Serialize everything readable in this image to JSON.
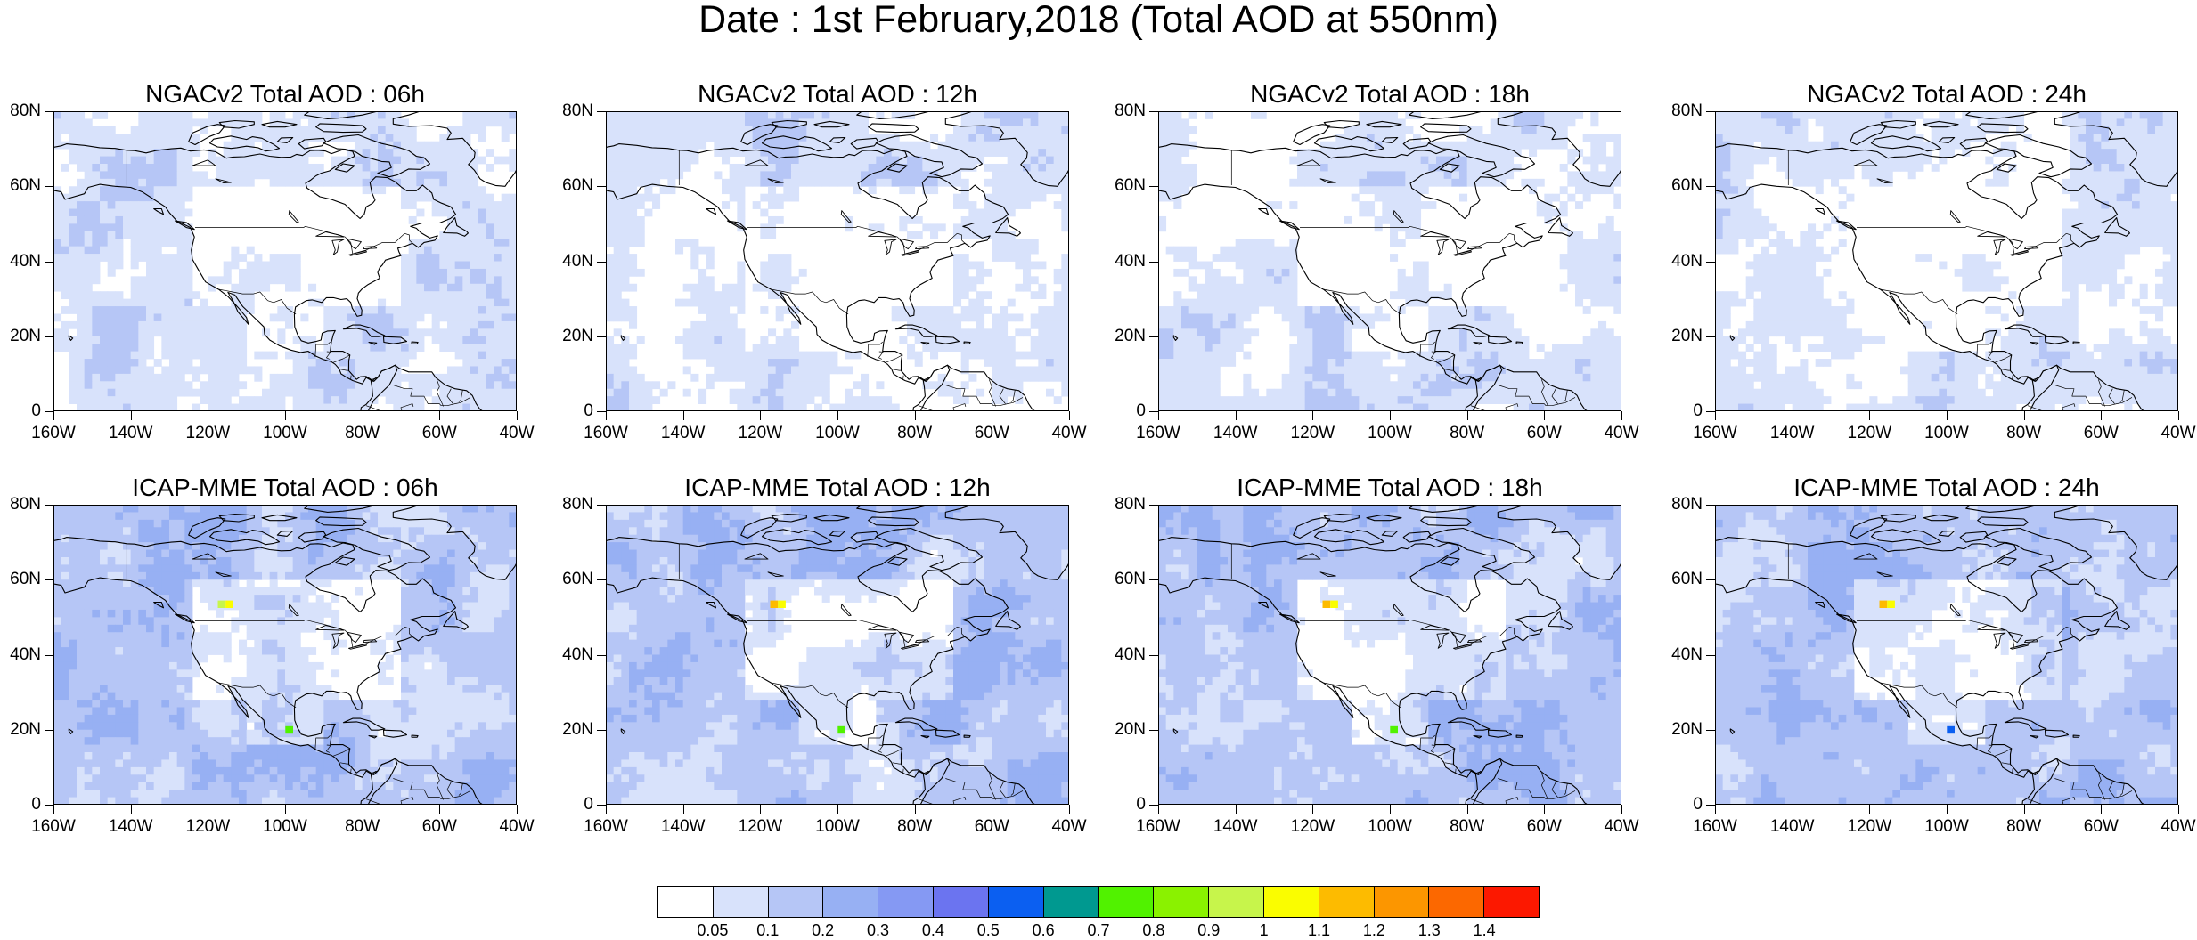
{
  "title": "Date : 1st February,2018 (Total AOD at 550nm)",
  "axes": {
    "lat_labels": [
      "0",
      "20N",
      "40N",
      "60N",
      "80N"
    ],
    "lon_labels": [
      "160W",
      "140W",
      "120W",
      "100W",
      "80W",
      "60W",
      "40W"
    ],
    "lat_range": [
      0,
      80
    ],
    "lon_range": [
      -160,
      -40
    ]
  },
  "panels": [
    {
      "id": "ngac-06h",
      "title": "NGACv2 Total AOD : 06h",
      "model": "NGACv2",
      "lead": "06h"
    },
    {
      "id": "ngac-12h",
      "title": "NGACv2 Total AOD : 12h",
      "model": "NGACv2",
      "lead": "12h"
    },
    {
      "id": "ngac-18h",
      "title": "NGACv2 Total AOD : 18h",
      "model": "NGACv2",
      "lead": "18h"
    },
    {
      "id": "ngac-24h",
      "title": "NGACv2 Total AOD : 24h",
      "model": "NGACv2",
      "lead": "24h"
    },
    {
      "id": "icap-06h",
      "title": "ICAP-MME Total AOD : 06h",
      "model": "ICAP-MME",
      "lead": "06h"
    },
    {
      "id": "icap-12h",
      "title": "ICAP-MME Total AOD : 12h",
      "model": "ICAP-MME",
      "lead": "12h"
    },
    {
      "id": "icap-18h",
      "title": "ICAP-MME Total AOD : 18h",
      "model": "ICAP-MME",
      "lead": "18h"
    },
    {
      "id": "icap-24h",
      "title": "ICAP-MME Total AOD : 24h",
      "model": "ICAP-MME",
      "lead": "24h"
    }
  ],
  "colorbar": {
    "labels": [
      "0.05",
      "0.1",
      "0.2",
      "0.3",
      "0.4",
      "0.5",
      "0.6",
      "0.7",
      "0.8",
      "0.9",
      "1",
      "1.1",
      "1.2",
      "1.3",
      "1.4"
    ],
    "colors": [
      "#ffffff",
      "#d8e2fb",
      "#b6c6f6",
      "#97b0f3",
      "#8599f3",
      "#6b74f0",
      "#0b5ff1",
      "#009990",
      "#51f200",
      "#8af200",
      "#c7f54b",
      "#fafd00",
      "#fdbb00",
      "#fc9600",
      "#fc6800",
      "#fc1800"
    ]
  }
}
